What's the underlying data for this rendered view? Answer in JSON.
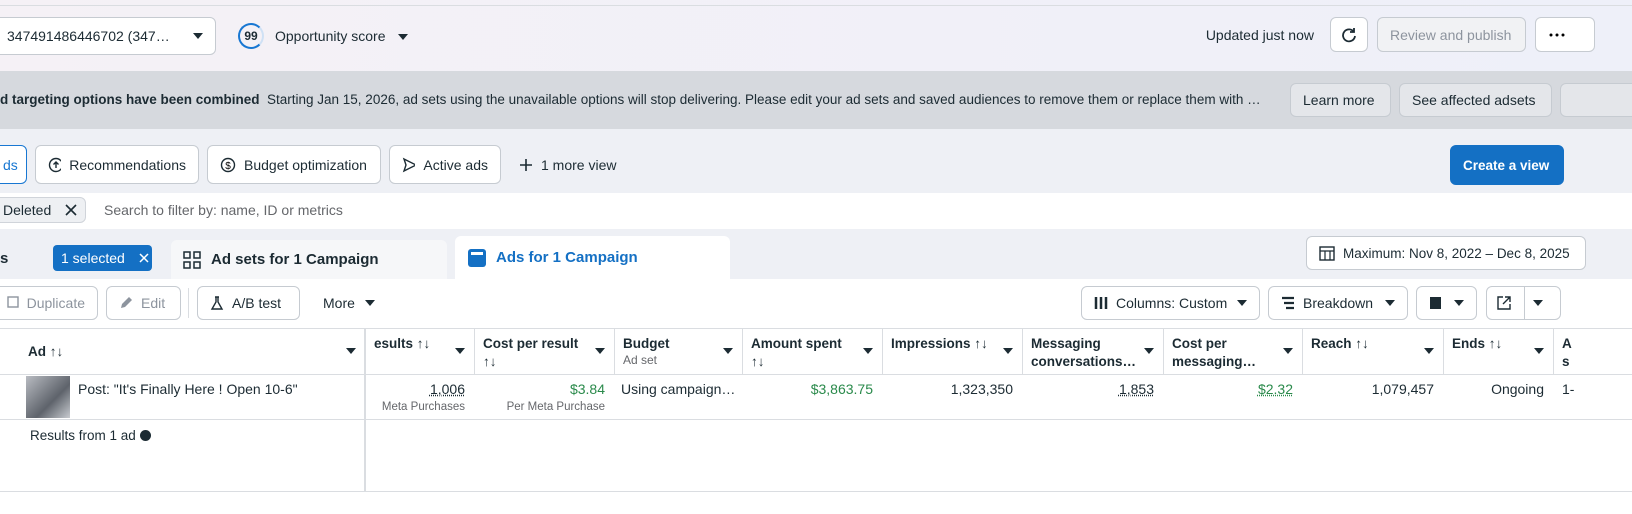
{
  "top_bar": {
    "account": "347491486446702 (347…",
    "score": "99",
    "score_label": "Opportunity score",
    "status": "Updated just now",
    "review": "Review and publish"
  },
  "banner": {
    "title": "d targeting options have been combined",
    "message": "Starting Jan 15, 2026, ad sets using the unavailable options will stop delivering. Please edit your ad sets and saved audiences to remove them or replace them with …",
    "actions": [
      "Learn more",
      "See affected adsets"
    ]
  },
  "views": {
    "items": [
      "ds",
      "Recommendations",
      "Budget optimization",
      "Active ads"
    ],
    "more": "1 more view",
    "create": "Create a view"
  },
  "filter": {
    "chip": "Deleted",
    "placeholder": "Search to filter by: name, ID or metrics"
  },
  "tabs": {
    "campaigns": "s",
    "selected": "1 selected",
    "ad_sets": "Ad sets for 1 Campaign",
    "ads": "Ads for 1 Campaign",
    "date_range": "Maximum: Nov 8, 2022 – Dec 8, 2025"
  },
  "toolbar": {
    "left": [
      "Duplicate",
      "Edit",
      "A/B test",
      "More"
    ],
    "right": [
      "Columns: Custom",
      "Breakdown"
    ]
  },
  "table": {
    "columns": [
      {
        "label": "Ad ↑↓"
      },
      {
        "label": "esults ↑↓"
      },
      {
        "label": "Cost per result ↑↓"
      },
      {
        "label": "Budget",
        "sub": "Ad set"
      },
      {
        "label": "Amount spent ↑↓"
      },
      {
        "label": "Impressions ↑↓"
      },
      {
        "label": "Messaging conversations…"
      },
      {
        "label": "Cost per messaging…"
      },
      {
        "label": "Reach ↑↓"
      },
      {
        "label": "Ends ↑↓"
      },
      {
        "label": "A s"
      }
    ],
    "rows": [
      [
        {
          "text": "Post: \"It's Finally Here ! Open 10-6\""
        },
        {
          "text": "1,006",
          "sub": "Meta Purchases"
        },
        {
          "text": "$3.84",
          "sub": "Per Meta Purchase"
        },
        {
          "text": "Using campaign…"
        },
        {
          "text": "$3,863.75"
        },
        {
          "text": "1,323,350"
        },
        {
          "text": "1,853"
        },
        {
          "text": "$2.32"
        },
        {
          "text": "1,079,457"
        },
        {
          "text": "Ongoing"
        },
        {
          "text": "1-"
        }
      ]
    ],
    "footer": "Results from 1 ad"
  }
}
